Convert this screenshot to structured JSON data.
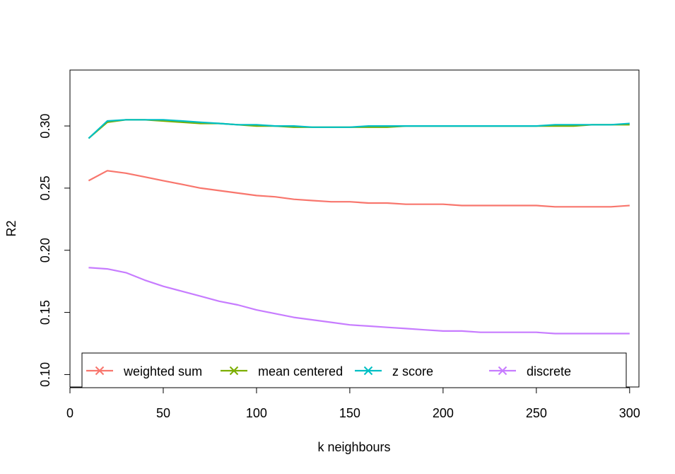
{
  "chart_data": {
    "type": "line",
    "title": "",
    "xlabel": "k neighbours",
    "ylabel": "R2",
    "xlim": [
      0,
      305
    ],
    "ylim": [
      0.09,
      0.345
    ],
    "x_ticks": [
      0,
      50,
      100,
      150,
      200,
      250,
      300
    ],
    "y_ticks": [
      0.1,
      0.15,
      0.2,
      0.25,
      0.3
    ],
    "x_tick_labels": [
      "0",
      "50",
      "100",
      "150",
      "200",
      "250",
      "300"
    ],
    "y_tick_labels": [
      "0.10",
      "0.15",
      "0.20",
      "0.25",
      "0.30"
    ],
    "grid": false,
    "legend_position": "bottom",
    "x": [
      10,
      20,
      30,
      40,
      50,
      60,
      70,
      80,
      90,
      100,
      110,
      120,
      130,
      140,
      150,
      160,
      170,
      180,
      190,
      200,
      210,
      220,
      230,
      240,
      250,
      260,
      270,
      280,
      290,
      300
    ],
    "series": [
      {
        "name": "weighted sum",
        "color": "#F8766D",
        "values": [
          0.256,
          0.264,
          0.262,
          0.259,
          0.256,
          0.253,
          0.25,
          0.248,
          0.246,
          0.244,
          0.243,
          0.241,
          0.24,
          0.239,
          0.239,
          0.238,
          0.238,
          0.237,
          0.237,
          0.237,
          0.236,
          0.236,
          0.236,
          0.236,
          0.236,
          0.235,
          0.235,
          0.235,
          0.235,
          0.236
        ]
      },
      {
        "name": "mean centered",
        "color": "#7CAE00",
        "values": [
          0.29,
          0.303,
          0.305,
          0.305,
          0.304,
          0.303,
          0.302,
          0.302,
          0.301,
          0.3,
          0.3,
          0.299,
          0.299,
          0.299,
          0.299,
          0.299,
          0.299,
          0.3,
          0.3,
          0.3,
          0.3,
          0.3,
          0.3,
          0.3,
          0.3,
          0.3,
          0.3,
          0.301,
          0.301,
          0.301
        ]
      },
      {
        "name": "z score",
        "color": "#00BFC4",
        "values": [
          0.29,
          0.304,
          0.305,
          0.305,
          0.305,
          0.304,
          0.303,
          0.302,
          0.301,
          0.301,
          0.3,
          0.3,
          0.299,
          0.299,
          0.299,
          0.3,
          0.3,
          0.3,
          0.3,
          0.3,
          0.3,
          0.3,
          0.3,
          0.3,
          0.3,
          0.301,
          0.301,
          0.301,
          0.301,
          0.302
        ]
      },
      {
        "name": "discrete",
        "color": "#C77CFF",
        "values": [
          0.186,
          0.185,
          0.182,
          0.176,
          0.171,
          0.167,
          0.163,
          0.159,
          0.156,
          0.152,
          0.149,
          0.146,
          0.144,
          0.142,
          0.14,
          0.139,
          0.138,
          0.137,
          0.136,
          0.135,
          0.135,
          0.134,
          0.134,
          0.134,
          0.134,
          0.133,
          0.133,
          0.133,
          0.133,
          0.133
        ]
      }
    ]
  }
}
